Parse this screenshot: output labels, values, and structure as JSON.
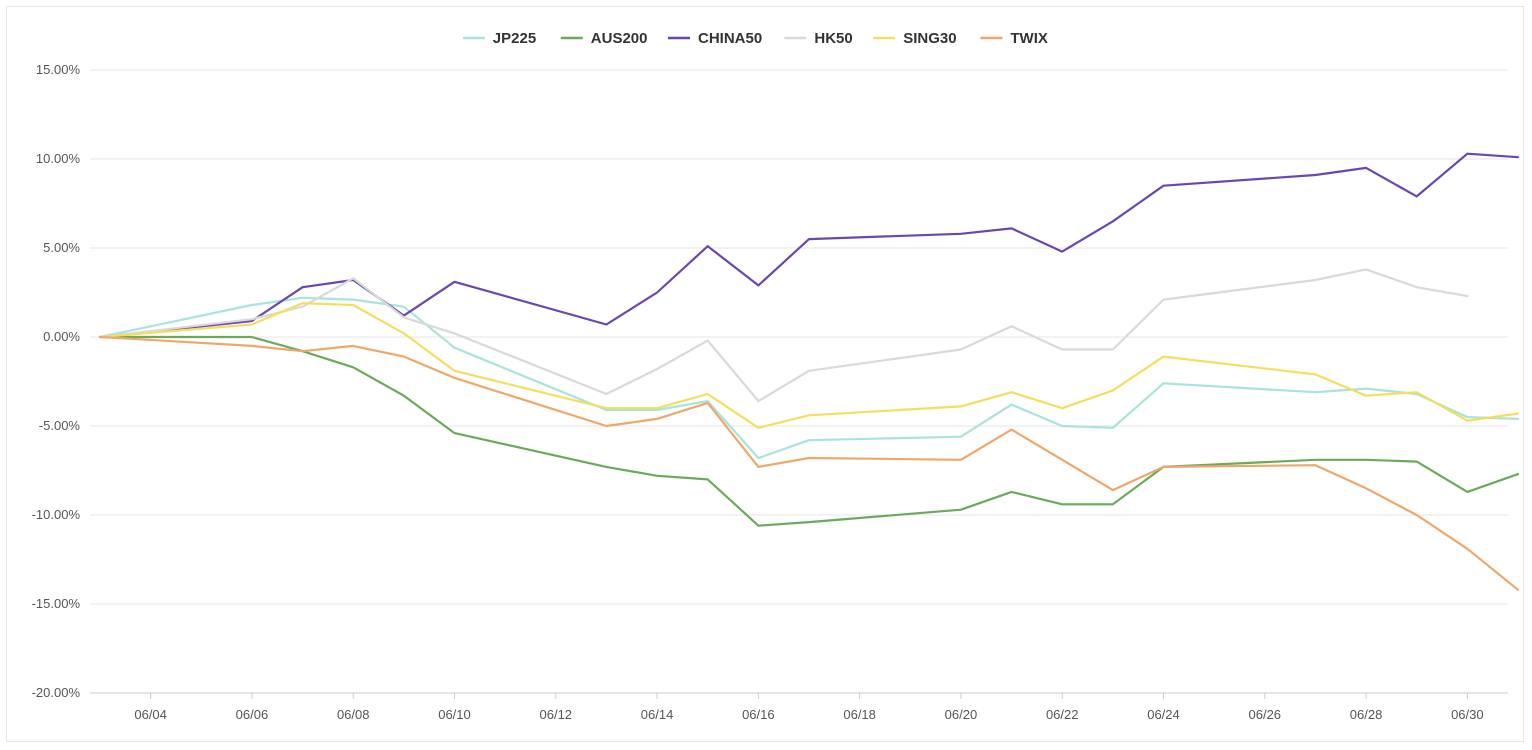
{
  "chart_data": {
    "type": "line",
    "title": "",
    "xlabel": "",
    "ylabel": "",
    "ylim": [
      -20,
      15
    ],
    "ytick_values": [
      15,
      10,
      5,
      0,
      -5,
      -10,
      -15,
      -20
    ],
    "ytick_labels": [
      "15.00%",
      "10.00%",
      "5.00%",
      "0.00%",
      "-5.00%",
      "-10.00%",
      "-15.00%",
      "-20.00%"
    ],
    "xlim": [
      "2025-06-03",
      "2025-07-01"
    ],
    "xtick_dates": [
      "2025-06-04",
      "2025-06-06",
      "2025-06-08",
      "2025-06-10",
      "2025-06-12",
      "2025-06-14",
      "2025-06-16",
      "2025-06-18",
      "2025-06-20",
      "2025-06-22",
      "2025-06-24",
      "2025-06-26",
      "2025-06-28",
      "2025-06-30"
    ],
    "xtick_labels": [
      "06/04",
      "06/06",
      "06/08",
      "06/10",
      "06/12",
      "06/14",
      "06/16",
      "06/18",
      "06/20",
      "06/22",
      "06/24",
      "06/26",
      "06/28",
      "06/30"
    ],
    "grid": true,
    "legend": "top-center",
    "x": [
      "2025-06-03",
      "2025-06-06",
      "2025-06-07",
      "2025-06-08",
      "2025-06-09",
      "2025-06-10",
      "2025-06-13",
      "2025-06-14",
      "2025-06-15",
      "2025-06-16",
      "2025-06-17",
      "2025-06-20",
      "2025-06-21",
      "2025-06-22",
      "2025-06-23",
      "2025-06-24",
      "2025-06-27",
      "2025-06-28",
      "2025-06-29",
      "2025-06-30",
      "2025-07-01"
    ],
    "series": [
      {
        "name": "JP225",
        "color": "#a8e3dc",
        "values": [
          0,
          1.8,
          2.2,
          2.1,
          1.7,
          -0.6,
          -4.1,
          -4.1,
          -3.6,
          -6.8,
          -5.8,
          -5.6,
          -3.8,
          -5.0,
          -5.1,
          -2.6,
          -3.1,
          -2.9,
          -3.2,
          -4.5,
          -4.6
        ]
      },
      {
        "name": "AUS200",
        "color": "#6aaa5a",
        "values": [
          0,
          0.0,
          -0.8,
          -1.7,
          -3.3,
          -5.4,
          -7.3,
          -7.8,
          -8.0,
          -10.6,
          -10.4,
          -9.7,
          -8.7,
          -9.4,
          -9.4,
          -7.3,
          -6.9,
          -6.9,
          -7.0,
          -8.7,
          -7.7
        ]
      },
      {
        "name": "CHINA50",
        "color": "#6a46b2",
        "values": [
          0,
          0.9,
          2.8,
          3.2,
          1.2,
          3.1,
          0.7,
          2.5,
          5.1,
          2.9,
          5.5,
          5.8,
          6.1,
          4.8,
          6.5,
          8.5,
          9.1,
          9.5,
          7.9,
          10.3,
          10.1
        ]
      },
      {
        "name": "HK50",
        "color": "#d9d9d9",
        "values": [
          0,
          1.0,
          1.7,
          3.3,
          1.1,
          0.2,
          -3.2,
          -1.8,
          -0.2,
          -3.6,
          -1.9,
          -0.7,
          0.6,
          -0.7,
          -0.7,
          2.1,
          3.2,
          3.8,
          2.8,
          2.3,
          null
        ]
      },
      {
        "name": "SING30",
        "color": "#f4df5c",
        "values": [
          0,
          0.7,
          1.9,
          1.8,
          0.2,
          -1.9,
          -4.0,
          -4.0,
          -3.2,
          -5.1,
          -4.4,
          -3.9,
          -3.1,
          -4.0,
          -3.0,
          -1.1,
          -2.1,
          -3.3,
          -3.1,
          -4.7,
          -4.3
        ]
      },
      {
        "name": "TWIX",
        "color": "#eea76a",
        "values": [
          0,
          -0.5,
          -0.8,
          -0.5,
          -1.1,
          -2.3,
          -5.0,
          -4.6,
          -3.7,
          -7.3,
          -6.8,
          -6.9,
          -5.2,
          -6.9,
          -8.6,
          -7.3,
          -7.2,
          -8.5,
          -10.0,
          -11.9,
          -14.2
        ]
      }
    ]
  }
}
